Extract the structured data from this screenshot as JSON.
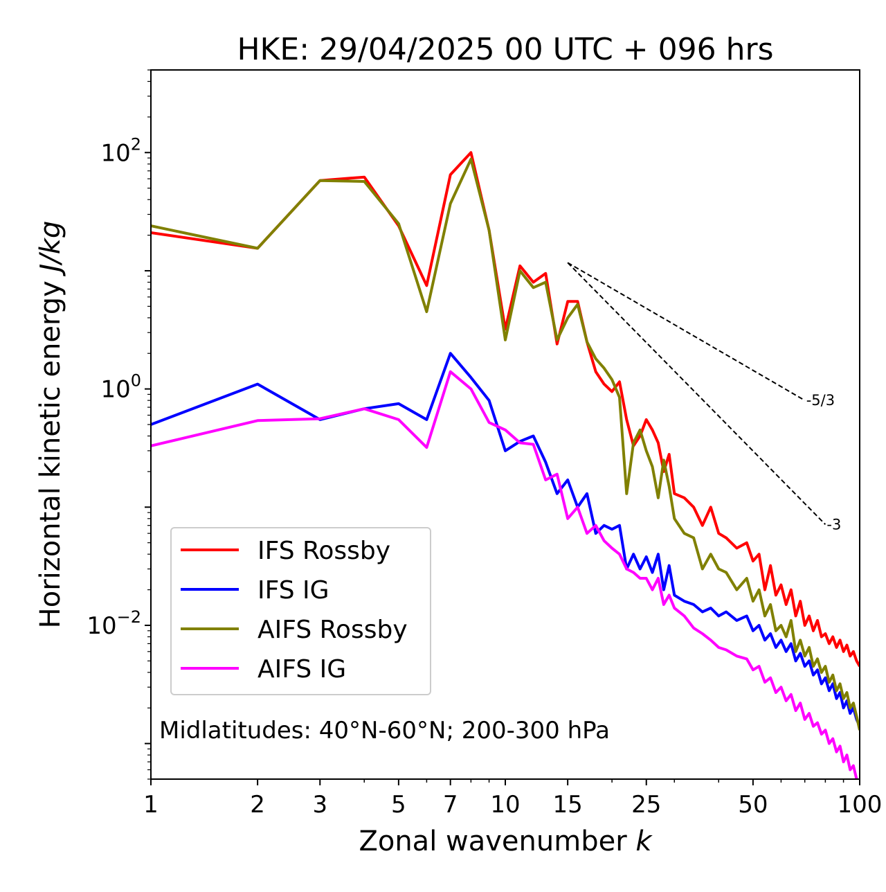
{
  "chart_data": {
    "type": "line",
    "title": "HKE: 29/04/2025 00 UTC + 096 hrs",
    "xlabel_text": "Zonal wavenumber",
    "xlabel_var": "k",
    "ylabel_text": "Horizontal kinetic energy",
    "ylabel_unit": "J/kg",
    "x_scale": "log",
    "y_scale": "log",
    "xlim": [
      1,
      100
    ],
    "ylim": [
      0.0005,
      500
    ],
    "x_ticks": [
      {
        "value": 1,
        "label": "1"
      },
      {
        "value": 2,
        "label": "2"
      },
      {
        "value": 3,
        "label": "3"
      },
      {
        "value": 5,
        "label": "5"
      },
      {
        "value": 7,
        "label": "7"
      },
      {
        "value": 10,
        "label": "10"
      },
      {
        "value": 15,
        "label": "15"
      },
      {
        "value": 25,
        "label": "25"
      },
      {
        "value": 50,
        "label": "50"
      },
      {
        "value": 100,
        "label": "100"
      }
    ],
    "y_ticks": [
      {
        "value": 100,
        "base": "10",
        "exp": "2"
      },
      {
        "value": 1,
        "base": "10",
        "exp": "0"
      },
      {
        "value": 0.01,
        "base": "10",
        "exp": "−2"
      }
    ],
    "annotation": "Midlatitudes: 40°N-60°N; 200-300 hPa",
    "legend_placement": "lower-left",
    "grid": false,
    "series": [
      {
        "name": "IFS Rossby",
        "color": "#ff0000",
        "x": [
          1,
          2,
          3,
          4,
          5,
          6,
          7,
          8,
          9,
          10,
          11,
          12,
          13,
          14,
          15,
          16,
          17,
          18,
          19,
          20,
          21,
          22,
          23,
          24,
          25,
          26,
          27,
          28,
          29,
          30,
          32,
          34,
          36,
          38,
          40,
          42,
          45,
          48,
          50,
          52,
          54,
          56,
          58,
          60,
          62,
          64,
          66,
          68,
          70,
          72,
          74,
          76,
          78,
          80,
          82,
          84,
          86,
          88,
          90,
          92,
          94,
          96,
          98,
          100
        ],
        "values": [
          21,
          15.5,
          58,
          62,
          24,
          7.5,
          65,
          100,
          22,
          3.2,
          11,
          8,
          9.5,
          2.4,
          5.5,
          5.5,
          2.5,
          1.4,
          1.1,
          0.95,
          1.15,
          0.55,
          0.33,
          0.4,
          0.55,
          0.45,
          0.35,
          0.2,
          0.28,
          0.13,
          0.12,
          0.1,
          0.07,
          0.1,
          0.06,
          0.055,
          0.045,
          0.05,
          0.035,
          0.04,
          0.02,
          0.032,
          0.018,
          0.022,
          0.015,
          0.02,
          0.012,
          0.016,
          0.01,
          0.012,
          0.009,
          0.011,
          0.008,
          0.0085,
          0.007,
          0.008,
          0.0065,
          0.0075,
          0.006,
          0.0068,
          0.0055,
          0.006,
          0.005,
          0.0045
        ]
      },
      {
        "name": "IFS IG",
        "color": "#0000ff",
        "x": [
          1,
          2,
          3,
          4,
          5,
          6,
          7,
          8,
          9,
          10,
          11,
          12,
          13,
          14,
          15,
          16,
          17,
          18,
          19,
          20,
          21,
          22,
          23,
          24,
          25,
          26,
          27,
          28,
          29,
          30,
          32,
          34,
          36,
          38,
          40,
          42,
          45,
          48,
          50,
          52,
          54,
          56,
          58,
          60,
          62,
          64,
          66,
          68,
          70,
          72,
          74,
          76,
          78,
          80,
          82,
          84,
          86,
          88,
          90,
          92,
          94,
          96,
          98,
          100
        ],
        "values": [
          0.5,
          1.1,
          0.55,
          0.68,
          0.75,
          0.55,
          2.0,
          1.25,
          0.8,
          0.3,
          0.36,
          0.4,
          0.24,
          0.13,
          0.17,
          0.1,
          0.13,
          0.06,
          0.07,
          0.065,
          0.07,
          0.03,
          0.04,
          0.03,
          0.038,
          0.028,
          0.04,
          0.02,
          0.032,
          0.018,
          0.016,
          0.015,
          0.013,
          0.014,
          0.012,
          0.013,
          0.011,
          0.012,
          0.009,
          0.01,
          0.0075,
          0.0085,
          0.0065,
          0.0075,
          0.006,
          0.007,
          0.005,
          0.0058,
          0.0045,
          0.005,
          0.0038,
          0.0042,
          0.0032,
          0.0036,
          0.0028,
          0.0032,
          0.0024,
          0.0027,
          0.002,
          0.0023,
          0.0018,
          0.002,
          0.0016,
          0.0014
        ]
      },
      {
        "name": "AIFS Rossby",
        "color": "#808000",
        "x": [
          1,
          2,
          3,
          4,
          5,
          6,
          7,
          8,
          9,
          10,
          11,
          12,
          13,
          14,
          15,
          16,
          17,
          18,
          19,
          20,
          21,
          22,
          23,
          24,
          25,
          26,
          27,
          28,
          29,
          30,
          32,
          34,
          36,
          38,
          40,
          42,
          45,
          48,
          50,
          52,
          54,
          56,
          58,
          60,
          62,
          64,
          66,
          68,
          70,
          72,
          74,
          76,
          78,
          80,
          82,
          84,
          86,
          88,
          90,
          92,
          94,
          96,
          98,
          100
        ],
        "values": [
          24,
          15.5,
          58,
          57,
          25,
          4.5,
          37,
          88,
          22,
          2.6,
          10,
          7.2,
          8.0,
          2.6,
          4.0,
          5.2,
          2.5,
          1.8,
          1.5,
          1.2,
          0.85,
          0.13,
          0.35,
          0.45,
          0.3,
          0.22,
          0.12,
          0.25,
          0.15,
          0.08,
          0.06,
          0.055,
          0.03,
          0.04,
          0.03,
          0.028,
          0.02,
          0.025,
          0.016,
          0.02,
          0.012,
          0.015,
          0.009,
          0.01,
          0.008,
          0.011,
          0.006,
          0.0075,
          0.0055,
          0.0065,
          0.0045,
          0.0052,
          0.004,
          0.0045,
          0.0033,
          0.0038,
          0.0028,
          0.0032,
          0.0024,
          0.0027,
          0.002,
          0.0022,
          0.0017,
          0.0013
        ]
      },
      {
        "name": "AIFS IG",
        "color": "#ff00ff",
        "x": [
          1,
          2,
          3,
          4,
          5,
          6,
          7,
          8,
          9,
          10,
          11,
          12,
          13,
          14,
          15,
          16,
          17,
          18,
          19,
          20,
          21,
          22,
          23,
          24,
          25,
          26,
          27,
          28,
          29,
          30,
          32,
          34,
          36,
          38,
          40,
          42,
          45,
          48,
          50,
          52,
          54,
          56,
          58,
          60,
          62,
          64,
          66,
          68,
          70,
          72,
          74,
          76,
          78,
          80,
          82,
          84,
          86,
          88,
          90,
          92,
          94,
          96,
          98,
          100
        ],
        "values": [
          0.33,
          0.54,
          0.56,
          0.68,
          0.55,
          0.32,
          1.4,
          1.0,
          0.52,
          0.45,
          0.35,
          0.34,
          0.17,
          0.19,
          0.08,
          0.1,
          0.06,
          0.07,
          0.052,
          0.045,
          0.04,
          0.03,
          0.028,
          0.025,
          0.025,
          0.02,
          0.025,
          0.015,
          0.018,
          0.014,
          0.012,
          0.0095,
          0.0085,
          0.0075,
          0.0065,
          0.0062,
          0.0055,
          0.0052,
          0.0042,
          0.0045,
          0.0033,
          0.0036,
          0.0027,
          0.003,
          0.0023,
          0.0026,
          0.0019,
          0.0022,
          0.0016,
          0.0018,
          0.0014,
          0.0015,
          0.0012,
          0.0013,
          0.001,
          0.0011,
          0.00085,
          0.00095,
          0.0007,
          0.0008,
          0.0006,
          0.00065,
          0.0005,
          0.00045
        ]
      }
    ],
    "reference_lines": [
      {
        "label": "-5/3",
        "x": [
          15,
          70
        ],
        "y": [
          11.7,
          0.8
        ]
      },
      {
        "label": "-3",
        "x": [
          15,
          80
        ],
        "y": [
          11.7,
          0.0714
        ]
      }
    ]
  }
}
